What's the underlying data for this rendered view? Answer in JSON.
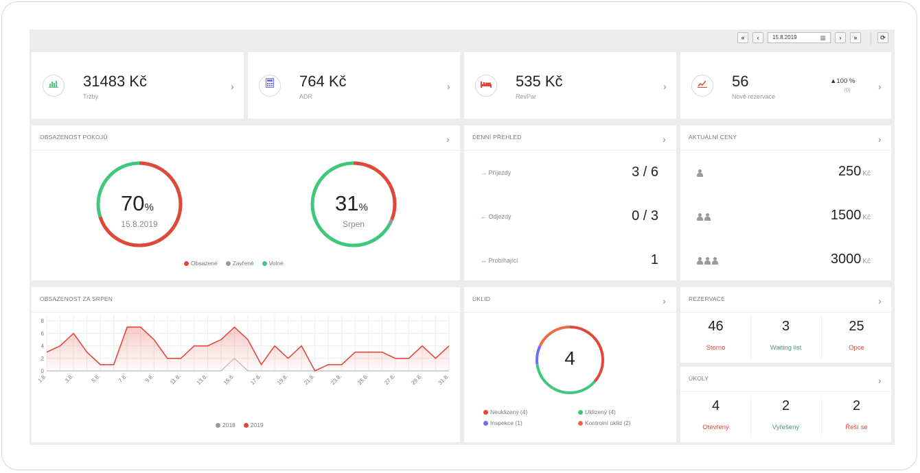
{
  "toolbar": {
    "date": "15.8.2019",
    "btn_first": "«",
    "btn_prev": "‹",
    "btn_next": "›",
    "btn_last": "»",
    "btn_refresh": "⟳",
    "calendar_icon": "▦"
  },
  "kpis": [
    {
      "value": "31483 Kč",
      "label": "Tržby",
      "icon": "bar-chart-icon",
      "color": "#4cc97e"
    },
    {
      "value": "764 Kč",
      "label": "ADR",
      "icon": "calculator-icon",
      "color": "#6b6ef0"
    },
    {
      "value": "535 Kč",
      "label": "RevPar",
      "icon": "bed-icon",
      "color": "#e2473a"
    },
    {
      "value": "56",
      "label": "Nové rezervace",
      "icon": "line-chart-icon",
      "color": "#e2473a",
      "change": "▲100 %",
      "change_sub": "(0)"
    }
  ],
  "occupancy": {
    "title": "OBSAZENOST POKOJŮ",
    "today": {
      "value": "70",
      "unit": "%",
      "label": "15.8.2019",
      "occupied": 70,
      "closed": 0,
      "free": 30
    },
    "month": {
      "value": "31",
      "unit": "%",
      "label": "Srpen",
      "occupied": 31,
      "closed": 2,
      "free": 67
    },
    "legend": [
      "Obsazené",
      "Zavřené",
      "Volné"
    ]
  },
  "daily": {
    "title": "DENNÍ PŘEHLED",
    "rows": [
      {
        "label": "Příjezdy",
        "value": "3 / 6",
        "icon": "→",
        "color": "#3fc77b"
      },
      {
        "label": "Odjezdy",
        "value": "0 / 3",
        "icon": "←",
        "color": "#e2473a"
      },
      {
        "label": "Probíhající",
        "value": "1",
        "icon": "↔",
        "color": "#6b6ef0"
      }
    ]
  },
  "prices": {
    "title": "AKTUÁLNÍ CENY",
    "currency": "Kč",
    "rows": [
      {
        "persons": 1,
        "price": "250"
      },
      {
        "persons": 2,
        "price": "1500"
      },
      {
        "persons": 3,
        "price": "3000"
      }
    ]
  },
  "month_chart": {
    "title": "OBSAZENOST ZA SRPEN",
    "legend": [
      "2018",
      "2019"
    ]
  },
  "chart_data": {
    "type": "line",
    "x": [
      1,
      2,
      3,
      4,
      5,
      6,
      7,
      8,
      9,
      10,
      11,
      12,
      13,
      14,
      15,
      16,
      17,
      18,
      19,
      20,
      21,
      22,
      23,
      24,
      25,
      26,
      27,
      28,
      29,
      30,
      31
    ],
    "x_tick_labels": [
      "1.8.",
      "3.8.",
      "5.8.",
      "7.8.",
      "9.8.",
      "11.8.",
      "13.8.",
      "15.8.",
      "17.8.",
      "19.8.",
      "21.8.",
      "23.8.",
      "25.8.",
      "27.8.",
      "29.8.",
      "31.8."
    ],
    "y_ticks": [
      0,
      2,
      4,
      6,
      8
    ],
    "ylim": [
      0,
      9
    ],
    "series": [
      {
        "name": "2018",
        "color": "#bbbbbb",
        "values": [
          0,
          0,
          0,
          0,
          0,
          0,
          0,
          0,
          0,
          0,
          0,
          0,
          0,
          0,
          2,
          0,
          0,
          0,
          0,
          0,
          0,
          0,
          0,
          0,
          0,
          0,
          0,
          0,
          0,
          0,
          0
        ]
      },
      {
        "name": "2019",
        "color": "#e2473a",
        "values": [
          3,
          4,
          6,
          3,
          1,
          1,
          7,
          7,
          5,
          2,
          2,
          4,
          4,
          5,
          7,
          5,
          1,
          4,
          2,
          4,
          0,
          1,
          1,
          3,
          3,
          3,
          2,
          2,
          4,
          2,
          4
        ]
      }
    ]
  },
  "cleaning": {
    "title": "ÚKLID",
    "total": "4",
    "segments": [
      {
        "name": "Neuklizený (4)",
        "count": 4,
        "color": "#e2473a"
      },
      {
        "name": "Uklizený (4)",
        "count": 4,
        "color": "#3fc77b"
      },
      {
        "name": "Inspekce (1)",
        "count": 1,
        "color": "#6b6ef0"
      },
      {
        "name": "Kontrolní úklid (2)",
        "count": 2,
        "color": "#f06a4a"
      }
    ]
  },
  "reservations": {
    "title": "REZERVACE",
    "cells": [
      {
        "value": "46",
        "label": "Storno",
        "color": "#e2473a"
      },
      {
        "value": "3",
        "label": "Waiting list",
        "color": "#4a9a6a"
      },
      {
        "value": "25",
        "label": "Opce",
        "color": "#e2473a"
      }
    ]
  },
  "tasks": {
    "title": "ÚKOLY",
    "cells": [
      {
        "value": "4",
        "label": "Otevřený",
        "color": "#e2473a"
      },
      {
        "value": "2",
        "label": "Vyřešený",
        "color": "#4a9a6a"
      },
      {
        "value": "2",
        "label": "Řeší se",
        "color": "#e2473a"
      }
    ]
  }
}
